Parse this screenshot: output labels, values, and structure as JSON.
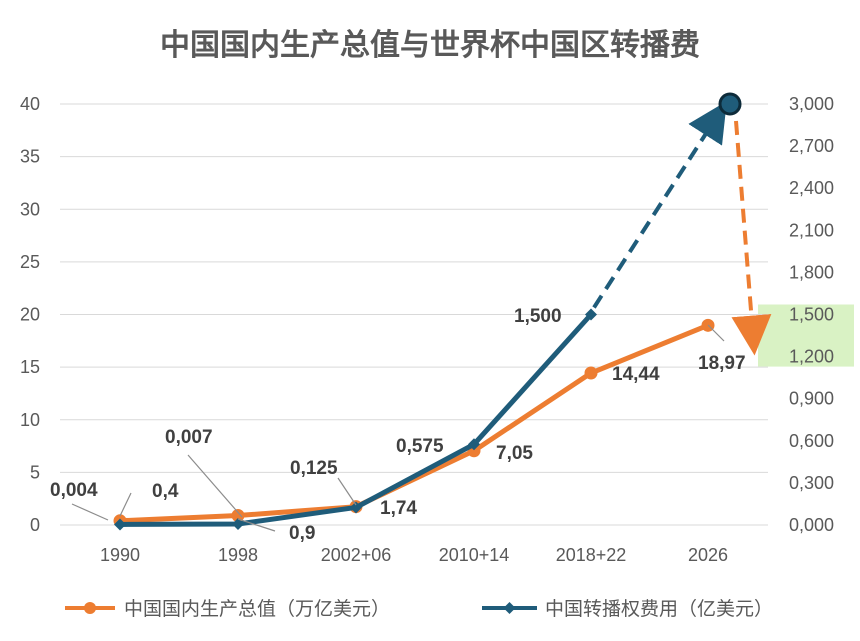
{
  "chart_data": {
    "type": "line",
    "title": "中国国内生产总值与世界杯中国区转播费",
    "categories": [
      "1990",
      "1998",
      "2002+06",
      "2010+14",
      "2018+22",
      "2026"
    ],
    "y_left": {
      "ticks": [
        "0",
        "5",
        "10",
        "15",
        "20",
        "25",
        "30",
        "35",
        "40"
      ],
      "ylim": [
        0,
        40
      ]
    },
    "y_right": {
      "ticks": [
        "0,000",
        "0,300",
        "0,600",
        "0,900",
        "1,200",
        "1,500",
        "1,800",
        "2,100",
        "2,400",
        "2,700",
        "3,000"
      ],
      "ylim": [
        0,
        3.0
      ]
    },
    "grid": true,
    "legend_position": "bottom",
    "series": [
      {
        "name": "中国国内生产总值（万亿美元）",
        "axis": "left",
        "color": "#ED7D31",
        "marker": "circle",
        "values": [
          0.4,
          0.9,
          1.74,
          7.05,
          14.44,
          18.97
        ],
        "labels": [
          "0,4",
          "0,9",
          "1,74",
          "7,05",
          "14,44",
          "18,97"
        ]
      },
      {
        "name": "中国转播权费用（亿美元）",
        "axis": "right",
        "color": "#1F5C7A",
        "marker": "diamond",
        "values": [
          0.004,
          0.007,
          0.125,
          0.575,
          1.5,
          null
        ],
        "labels": [
          "0,004",
          "0,007",
          "0,125",
          "0,575",
          "1,500",
          ""
        ],
        "projection": {
          "to_category": "2026",
          "value": 3.0,
          "style": "dashed"
        }
      }
    ],
    "annotations": [
      {
        "type": "dashed-arrow",
        "color": "#ED7D31",
        "from": "projected 3,000 point",
        "to": "1,200–1,500 range on right axis"
      },
      {
        "type": "highlight-band",
        "color": "#D9F2C4",
        "axis": "right",
        "range": [
          1.2,
          1.5
        ]
      }
    ]
  }
}
